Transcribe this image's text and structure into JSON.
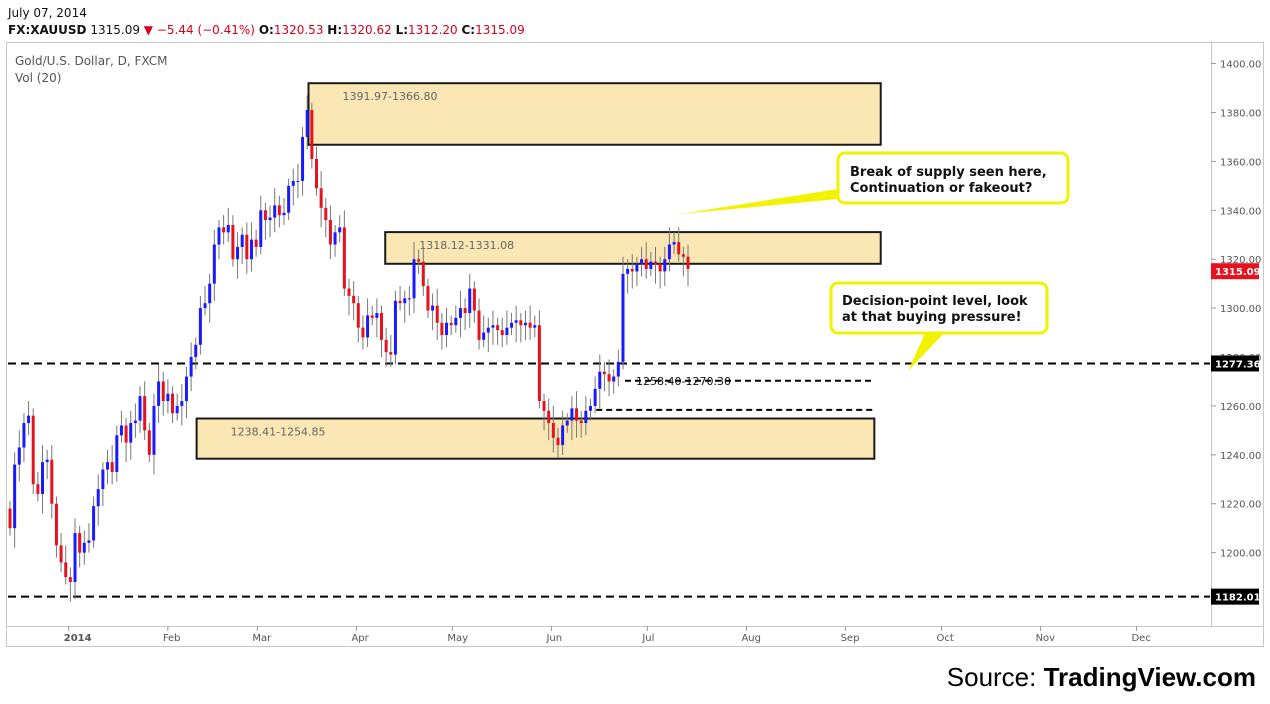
{
  "header": {
    "date": "July 07, 2014",
    "symbol": "FX:XAUUSD",
    "last": "1315.09",
    "change": "−5.44 (−0.41%)",
    "open_label": "O:",
    "open": "1320.53",
    "high_label": "H:",
    "high": "1320.62",
    "low_label": "L:",
    "low": "1312.20",
    "close_label": "C:",
    "close": "1315.09",
    "down_color": "#d6001c"
  },
  "footer": {
    "prefix": "Source: ",
    "brand": "TradingView.com"
  },
  "chart_data": {
    "type": "candlestick",
    "title": "Gold/U.S. Dollar, D, FXCM",
    "subtitle": "Vol (20)",
    "ylim": [
      1170,
      1408
    ],
    "y_ticks": [
      1200,
      1220,
      1240,
      1260,
      1280,
      1300,
      1320,
      1340,
      1360,
      1380,
      1400
    ],
    "x_range": [
      "2013-12-13",
      "2014-12-24"
    ],
    "x_ticks": [
      {
        "date": "2014-01-01",
        "label": "2014",
        "bold": true
      },
      {
        "date": "2014-02-01",
        "label": "Feb"
      },
      {
        "date": "2014-03-01",
        "label": "Mar"
      },
      {
        "date": "2014-04-01",
        "label": "Apr"
      },
      {
        "date": "2014-05-01",
        "label": "May"
      },
      {
        "date": "2014-06-01",
        "label": "Jun"
      },
      {
        "date": "2014-07-01",
        "label": "Jul"
      },
      {
        "date": "2014-08-01",
        "label": "Aug"
      },
      {
        "date": "2014-09-01",
        "label": "Sep"
      },
      {
        "date": "2014-10-01",
        "label": "Oct"
      },
      {
        "date": "2014-11-01",
        "label": "Nov"
      },
      {
        "date": "2014-12-01",
        "label": "Dec"
      }
    ],
    "colors": {
      "up": "#1a1aff",
      "down": "#e8111e",
      "zone_fill": "#fbe7b3",
      "zone_border": "#1a1a1a",
      "callout_border": "#f2f200",
      "price_tag": "#e8111e"
    },
    "closes": [
      1210,
      1236,
      1243,
      1253,
      1256,
      1228,
      1224,
      1237,
      1238,
      1220,
      1203,
      1196,
      1190,
      1188,
      1208,
      1200,
      1204,
      1205,
      1219,
      1226,
      1234,
      1237,
      1233,
      1248,
      1252,
      1245,
      1253,
      1254,
      1264,
      1250,
      1240,
      1260,
      1270,
      1262,
      1265,
      1257,
      1260,
      1262,
      1272,
      1280,
      1285,
      1300,
      1302,
      1310,
      1326,
      1333,
      1331,
      1334,
      1320,
      1325,
      1330,
      1320,
      1328,
      1325,
      1340,
      1336,
      1337,
      1342,
      1338,
      1339,
      1350,
      1352,
      1352,
      1370,
      1381,
      1361,
      1349,
      1341,
      1336,
      1326,
      1331,
      1333,
      1308,
      1305,
      1302,
      1292,
      1288,
      1297,
      1296,
      1298,
      1287,
      1282,
      1281,
      1303,
      1302,
      1304,
      1304,
      1320,
      1319,
      1309,
      1299,
      1301,
      1294,
      1289,
      1294,
      1293,
      1296,
      1300,
      1298,
      1308,
      1299,
      1287,
      1290,
      1292,
      1293,
      1291,
      1289,
      1292,
      1294,
      1295,
      1293,
      1294,
      1292,
      1293,
      1262,
      1258,
      1253,
      1247,
      1244,
      1252,
      1254,
      1259,
      1254,
      1253,
      1258,
      1260,
      1267,
      1274,
      1273,
      1270,
      1272,
      1278,
      1314,
      1316,
      1315,
      1318,
      1320,
      1316,
      1319,
      1318,
      1315,
      1320,
      1326,
      1327,
      1322,
      1321,
      1316
    ],
    "volume_colors_note": "candle colour: blue if close >= previous close, red otherwise",
    "zones": [
      {
        "label": "1391.97-1366.80",
        "low": 1366.8,
        "high": 1391.97,
        "start": "2014-03-17",
        "end": "2014-09-12"
      },
      {
        "label": "1318.12-1331.08",
        "low": 1318.12,
        "high": 1331.08,
        "start": "2014-04-10",
        "end": "2014-09-12"
      },
      {
        "label": "1238.41-1254.85",
        "low": 1238.41,
        "high": 1254.85,
        "start": "2014-02-10",
        "end": "2014-09-10"
      }
    ],
    "levels": [
      {
        "value": 1277.36,
        "label": "1277.36",
        "start": "2013-12-13"
      },
      {
        "value": 1182.01,
        "label": "1182.01",
        "start": "2013-12-13"
      }
    ],
    "short_levels": [
      {
        "value": 1270.3,
        "start": "2014-06-24",
        "end": "2014-09-10"
      },
      {
        "value": 1258.4,
        "start": "2014-06-15",
        "end": "2014-09-10"
      }
    ],
    "short_levels_label": "1258.40-1270.30",
    "callouts": [
      {
        "lines": [
          "Break of supply seen here,",
          "Continuation or fakeout?"
        ]
      },
      {
        "lines": [
          "Decision-point level, look",
          "at that buying pressure!"
        ]
      }
    ],
    "last_price": {
      "value": 1315.09,
      "label": "1315.09"
    }
  }
}
